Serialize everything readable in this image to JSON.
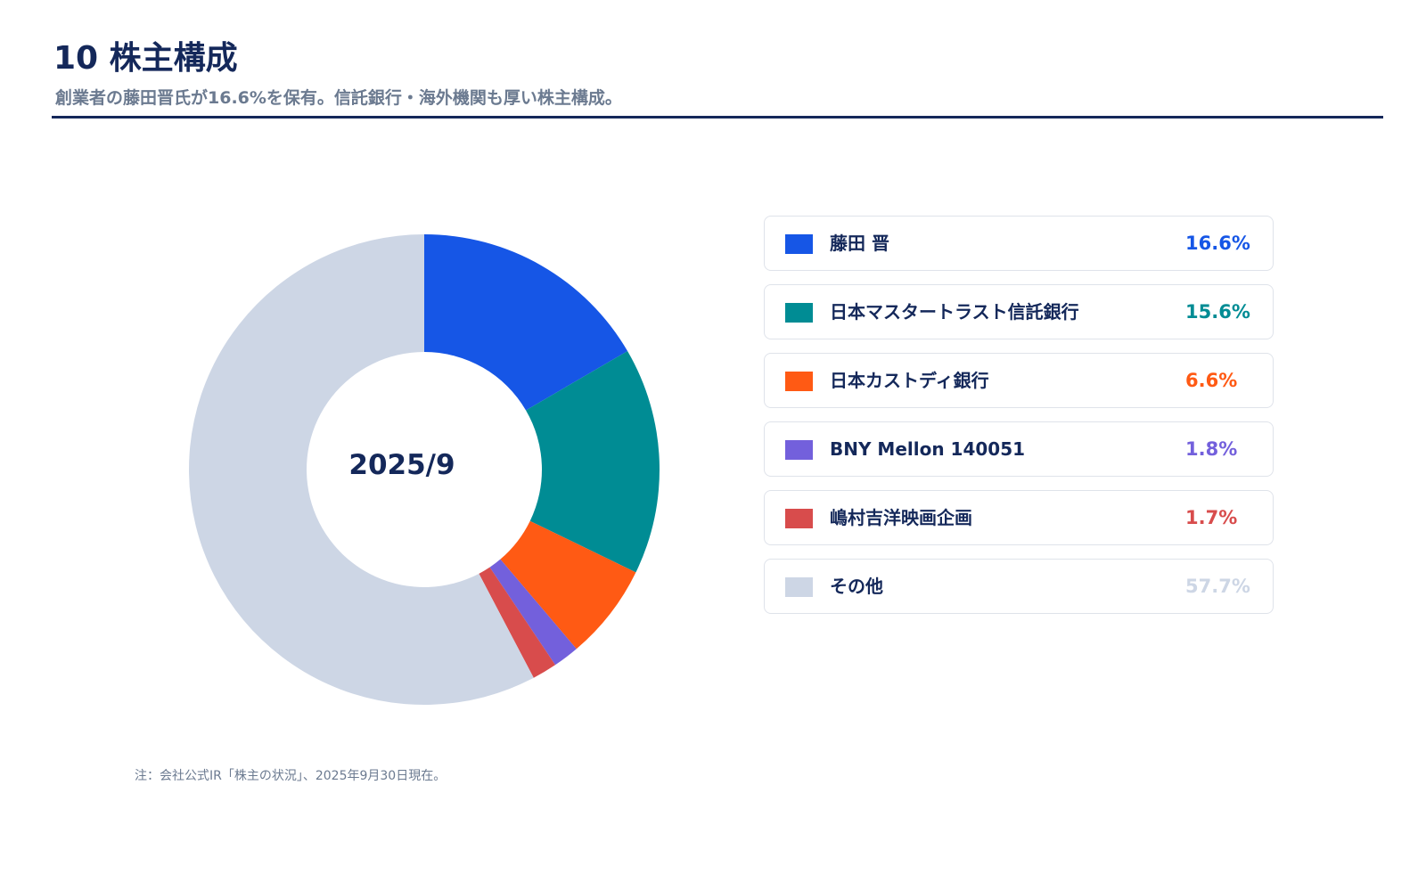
{
  "title": "10 株主構成",
  "subtitle": "創業者の藤田晋氏が16.6%を保有。信託銀行・海外機関も厚い株主構成。",
  "note": "注：会社公式IR「株主の状況」、2025年9月30日現在。",
  "chart_data": {
    "type": "pie",
    "variant": "donut",
    "center_label": "2025/9",
    "categories": [
      "藤田 晋",
      "日本マスタートラスト信託銀行",
      "日本カストディ銀行",
      "BNY Mellon 140051",
      "嶋村吉洋映画企画",
      "その他"
    ],
    "values": [
      16.6,
      15.6,
      6.6,
      1.8,
      1.7,
      57.7
    ],
    "value_labels": [
      "16.6%",
      "15.6%",
      "6.6%",
      "1.8%",
      "1.7%",
      "57.7%"
    ],
    "unit": "%",
    "colors": [
      "#1656e6",
      "#008c94",
      "#ff5a14",
      "#7360dc",
      "#d84c4c",
      "#cdd6e5"
    ],
    "legend_position": "right"
  }
}
